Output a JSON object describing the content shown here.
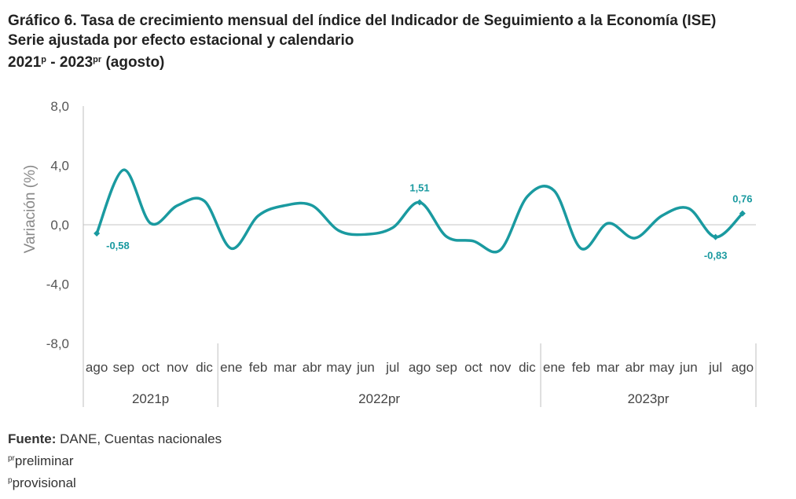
{
  "title": {
    "line1": "Gráfico 6. Tasa de crecimiento mensual del índice del Indicador de Seguimiento a la Economía (ISE)",
    "line2": "Serie ajustada por efecto estacional y calendario",
    "line3_a": "2021",
    "line3_sup_a": "p",
    "line3_b": " - 2023",
    "line3_sup_b": "pr",
    "line3_c": " (agosto)"
  },
  "footer": {
    "source_label": "Fuente:",
    "source_text": " DANE, Cuentas nacionales",
    "note1_sup": "pr",
    "note1_text": "preliminar",
    "note2_sup": "p",
    "note2_text": "provisional"
  },
  "colors": {
    "line": "#1a9aa0",
    "grid": "#d9d9d9",
    "axis": "#bfbfbf"
  },
  "chart_data": {
    "type": "line",
    "ylabel": "Variación  (%)",
    "ylim": [
      -8,
      8
    ],
    "yticks": [
      8,
      4,
      0,
      -4,
      -8
    ],
    "ytick_labels": [
      "8,0",
      "4,0",
      "0,0",
      "-4,0",
      "-8,0"
    ],
    "categories": [
      "ago",
      "sep",
      "oct",
      "nov",
      "dic",
      "ene",
      "feb",
      "mar",
      "abr",
      "may",
      "jun",
      "jul",
      "ago",
      "sep",
      "oct",
      "nov",
      "dic",
      "ene",
      "feb",
      "mar",
      "abr",
      "may",
      "jun",
      "jul",
      "ago"
    ],
    "groups": [
      {
        "label": "2021p",
        "count": 5
      },
      {
        "label": "2022pr",
        "count": 12
      },
      {
        "label": "2023pr",
        "count": 8
      }
    ],
    "series": [
      {
        "name": "ISE",
        "values": [
          -0.58,
          3.7,
          0.1,
          1.3,
          1.6,
          -1.6,
          0.6,
          1.3,
          1.3,
          -0.4,
          -0.65,
          -0.2,
          1.51,
          -0.8,
          -1.1,
          -1.7,
          1.9,
          2.3,
          -1.6,
          0.1,
          -0.9,
          0.6,
          1.1,
          -0.83,
          0.76
        ]
      }
    ],
    "annotations": [
      {
        "index": 0,
        "label": "-0,58",
        "position": "below-right"
      },
      {
        "index": 12,
        "label": "1,51",
        "position": "above"
      },
      {
        "index": 23,
        "label": "-0,83",
        "position": "below"
      },
      {
        "index": 24,
        "label": "0,76",
        "position": "above"
      }
    ]
  }
}
